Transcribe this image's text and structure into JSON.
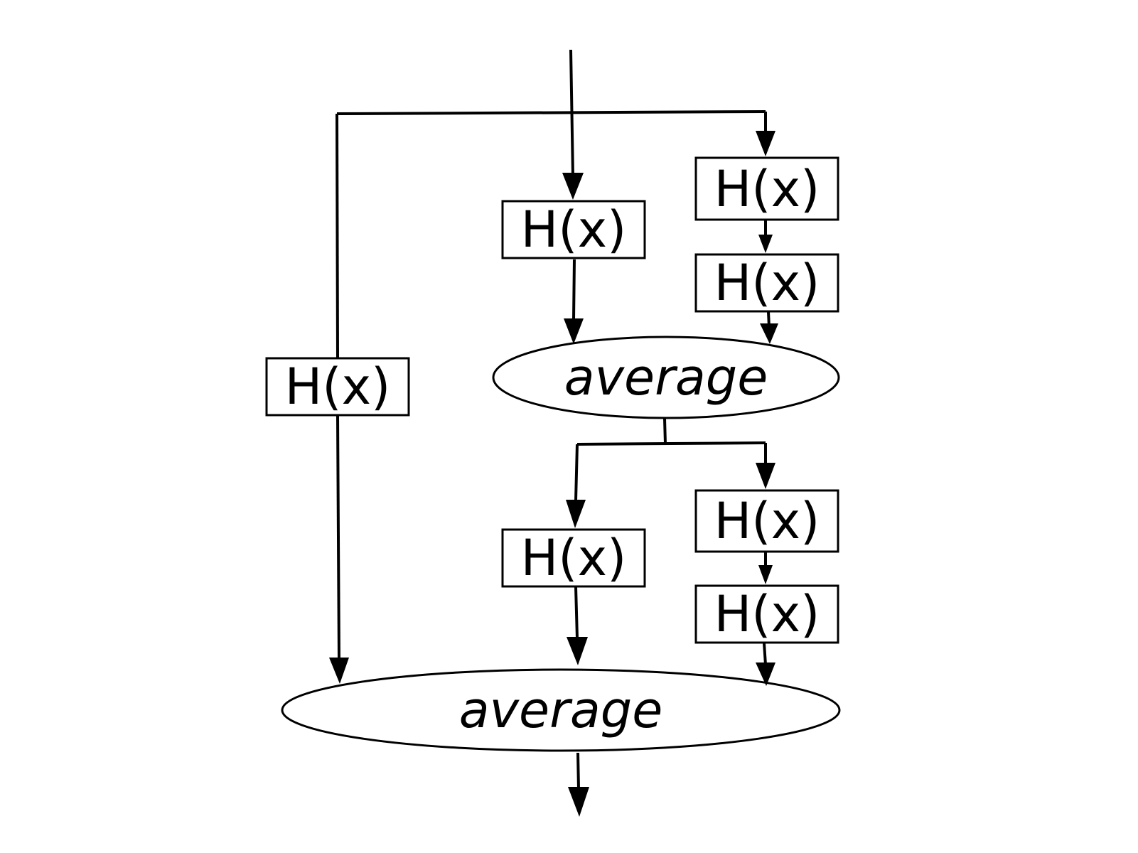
{
  "diagram": {
    "nodes": {
      "h_main": "H(x)",
      "h_right_1": "H(x)",
      "h_right_2": "H(x)",
      "h_left": "H(x)",
      "average_1": "average",
      "h_main_2": "H(x)",
      "h_right_3": "H(x)",
      "h_right_4": "H(x)",
      "average_2": "average"
    }
  },
  "colors": {
    "stroke": "#000000",
    "background": "#ffffff"
  }
}
